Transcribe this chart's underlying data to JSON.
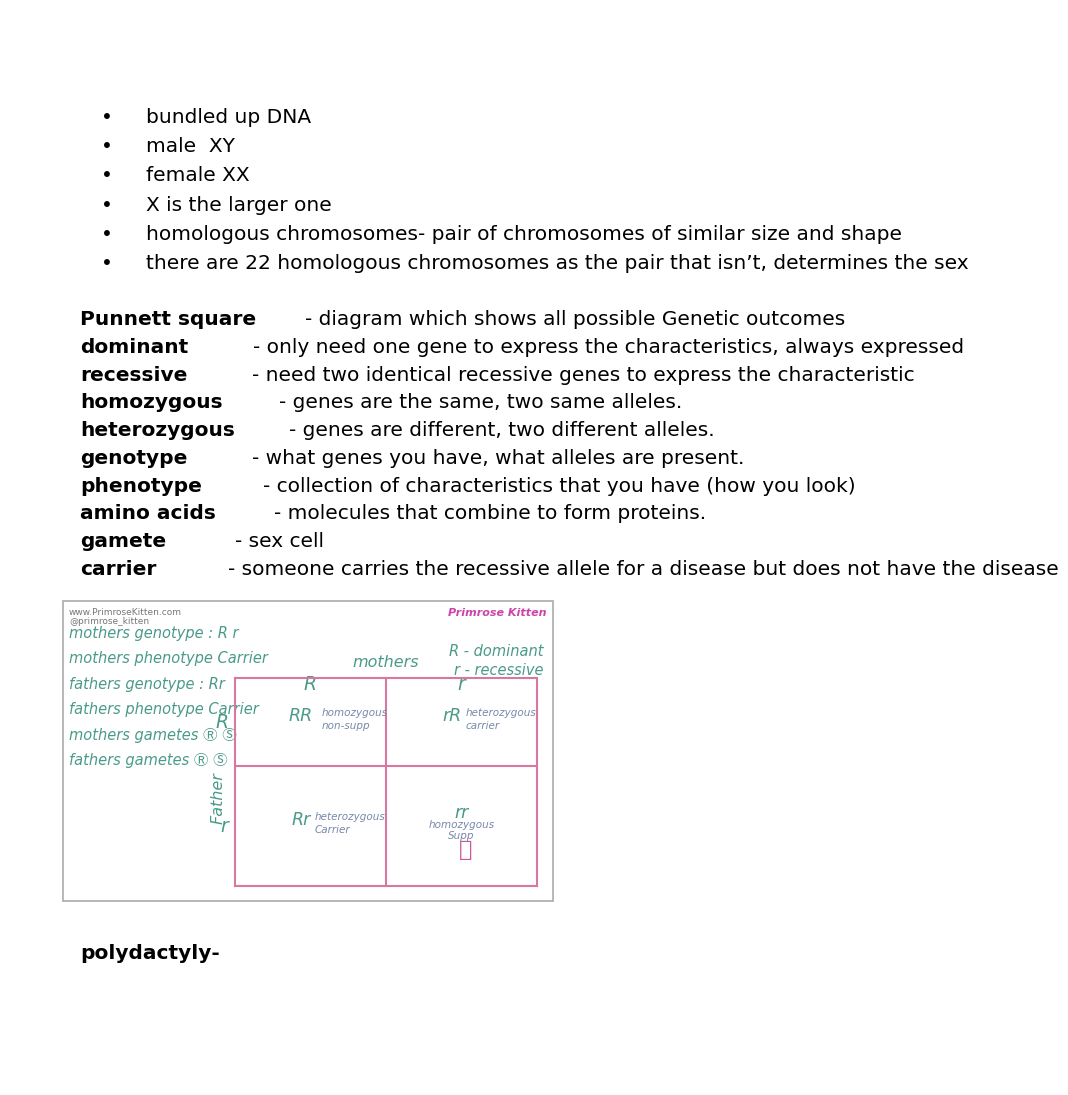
{
  "background_color": "#ffffff",
  "page_width": 10.8,
  "page_height": 13.97,
  "bullet_points": [
    "bundled up DNA",
    "male  XY",
    "female XX",
    "X is the larger one",
    "homologous chromosomes- pair of chromosomes of similar size and shape",
    "there are 22 homologous chromosomes as the pair that isn’t, determines the sex"
  ],
  "definitions": [
    {
      "bold": "Punnett square",
      "rest": "- diagram which shows all possible Genetic outcomes"
    },
    {
      "bold": "dominant",
      "rest": "- only need one gene to express the characteristics, always expressed"
    },
    {
      "bold": "recessive",
      "rest": "- need two identical recessive genes to express the characteristic"
    },
    {
      "bold": "homozygous",
      "rest": "- genes are the same, two same alleles."
    },
    {
      "bold": "heterozygous",
      "rest": "- genes are different, two different alleles."
    },
    {
      "bold": "genotype",
      "rest": "- what genes you have, what alleles are present."
    },
    {
      "bold": "phenotype",
      "rest": "- collection of characteristics that you have (how you look)"
    },
    {
      "bold": "amino acids",
      "rest": "- molecules that combine to form proteins."
    },
    {
      "bold": "gamete",
      "rest": "- sex cell"
    },
    {
      "bold": "carrier",
      "rest": "- someone carries the recessive allele for a disease but does not have the disease"
    }
  ],
  "last_bold": "polydactyly-",
  "hw_color": "#4a9a8a",
  "pink_color": "#d878a0",
  "gray_color": "#888888",
  "purple_color": "#9966aa"
}
